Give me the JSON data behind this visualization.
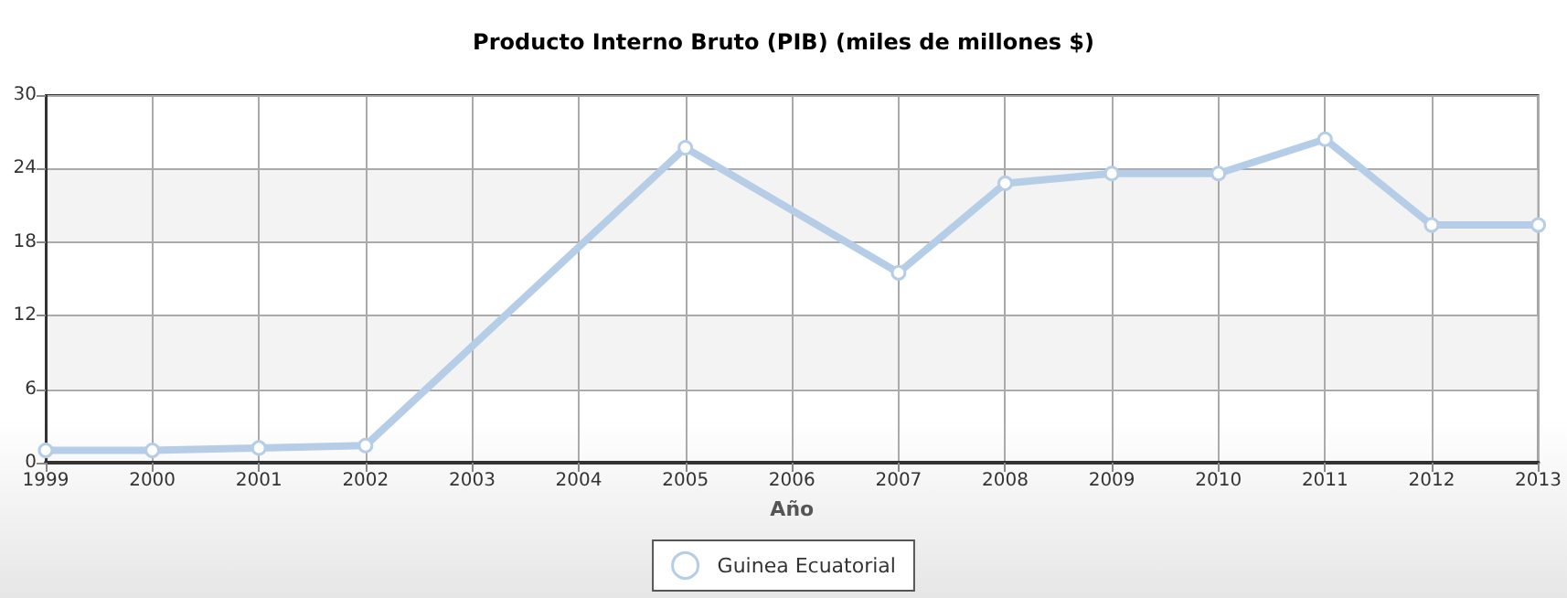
{
  "chart_data": {
    "type": "line",
    "title": "Producto Interno Bruto (PIB) (miles de millones $)",
    "xlabel": "Año",
    "x": [
      1999,
      2000,
      2001,
      2002,
      2005,
      2007,
      2008,
      2009,
      2010,
      2011,
      2012,
      2013
    ],
    "series": [
      {
        "name": "Guinea Ecuatorial",
        "color": "#b5cde6",
        "values": [
          1.0,
          1.0,
          1.2,
          1.4,
          25.7,
          15.5,
          22.8,
          23.6,
          23.6,
          26.4,
          19.4,
          19.4
        ]
      }
    ],
    "xlim": [
      1999,
      2013
    ],
    "xticks": [
      1999,
      2000,
      2001,
      2002,
      2003,
      2004,
      2005,
      2006,
      2007,
      2008,
      2009,
      2010,
      2011,
      2012,
      2013
    ],
    "ylim": [
      0,
      30
    ],
    "yticks": [
      0,
      6,
      12,
      18,
      24,
      30
    ],
    "grid": true,
    "legend": "bottom",
    "marker": "circle",
    "line_style": "solid"
  }
}
